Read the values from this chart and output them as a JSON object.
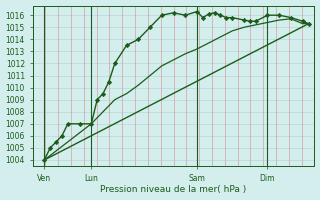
{
  "bg_color": "#d4eeed",
  "grid_color_v": "#d4a0a0",
  "grid_color_h": "#b8d8d8",
  "line_color": "#1a5c1a",
  "xlabel": "Pression niveau de la mer( hPa )",
  "ylim": [
    1003.5,
    1016.8
  ],
  "yticks": [
    1004,
    1005,
    1006,
    1007,
    1008,
    1009,
    1010,
    1011,
    1012,
    1013,
    1014,
    1015,
    1016
  ],
  "xlim": [
    0,
    48
  ],
  "xtick_labels": [
    "Ven",
    "Lun",
    "Sam",
    "Dim"
  ],
  "xtick_positions": [
    2,
    10,
    28,
    40
  ],
  "vline_positions": [
    2,
    10,
    28,
    40
  ],
  "series1_x": [
    2,
    3,
    4,
    5,
    6,
    8,
    10,
    11,
    12,
    13,
    14,
    16,
    18,
    20,
    22,
    24,
    26,
    28,
    29,
    30,
    31,
    32,
    33,
    34,
    36,
    37,
    38,
    40,
    42,
    44,
    46,
    47
  ],
  "series1_y": [
    1004,
    1005,
    1005.5,
    1006,
    1007,
    1007,
    1007,
    1009,
    1009.5,
    1010.5,
    1012,
    1013.5,
    1014,
    1015,
    1016,
    1016.2,
    1016,
    1016.3,
    1015.8,
    1016.1,
    1016.2,
    1016.0,
    1015.8,
    1015.8,
    1015.6,
    1015.5,
    1015.5,
    1016.0,
    1016.0,
    1015.8,
    1015.5,
    1015.3
  ],
  "series2_x": [
    2,
    10,
    12,
    14,
    16,
    18,
    20,
    22,
    24,
    26,
    28,
    30,
    32,
    34,
    36,
    38,
    40,
    42,
    44,
    46,
    47
  ],
  "series2_y": [
    1004,
    1007,
    1008.0,
    1009.0,
    1009.5,
    1010.2,
    1011.0,
    1011.8,
    1012.3,
    1012.8,
    1013.2,
    1013.7,
    1014.2,
    1014.7,
    1015.0,
    1015.2,
    1015.4,
    1015.6,
    1015.7,
    1015.3,
    1015.3
  ],
  "series3_x": [
    2,
    47
  ],
  "series3_y": [
    1004,
    1015.3
  ],
  "n_hgrid": 20,
  "n_vgrid": 22
}
